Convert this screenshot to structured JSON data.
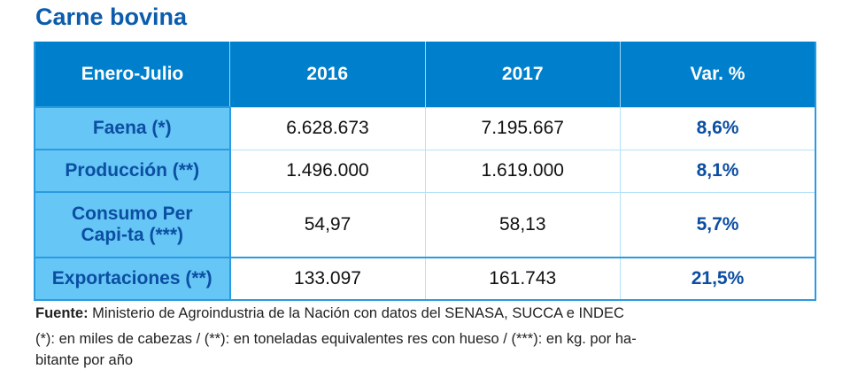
{
  "title": "Carne bovina",
  "table": {
    "headers": [
      "Enero-Julio",
      "2016",
      "2017",
      "Var. %"
    ],
    "rows": [
      {
        "label": "Faena (*)",
        "v2016": "6.628.673",
        "v2017": "7.195.667",
        "var": "8,6%"
      },
      {
        "label": "Producción (**)",
        "v2016": "1.496.000",
        "v2017": "1.619.000",
        "var": "8,1%"
      },
      {
        "label": "Consumo Per Capi-ta (***)",
        "v2016": "54,97",
        "v2017": "58,13",
        "var": "5,7%"
      },
      {
        "label": "Exportaciones (**)",
        "v2016": "133.097",
        "v2017": "161.743",
        "var": "21,5%"
      }
    ]
  },
  "footer": {
    "source_label": "Fuente:",
    "source_text": " Ministerio de Agroindustria de la Nación con datos del SENASA, SUCCA e INDEC",
    "notes_line1": "(*): en miles de cabezas / (**): en toneladas equivalentes res con hueso / (***): en kg. por ha-",
    "notes_line2": "bitante por año"
  },
  "colors": {
    "header": "#0080cc",
    "label_bg": "#66c6f5",
    "accent_text": "#0b4ea2"
  }
}
